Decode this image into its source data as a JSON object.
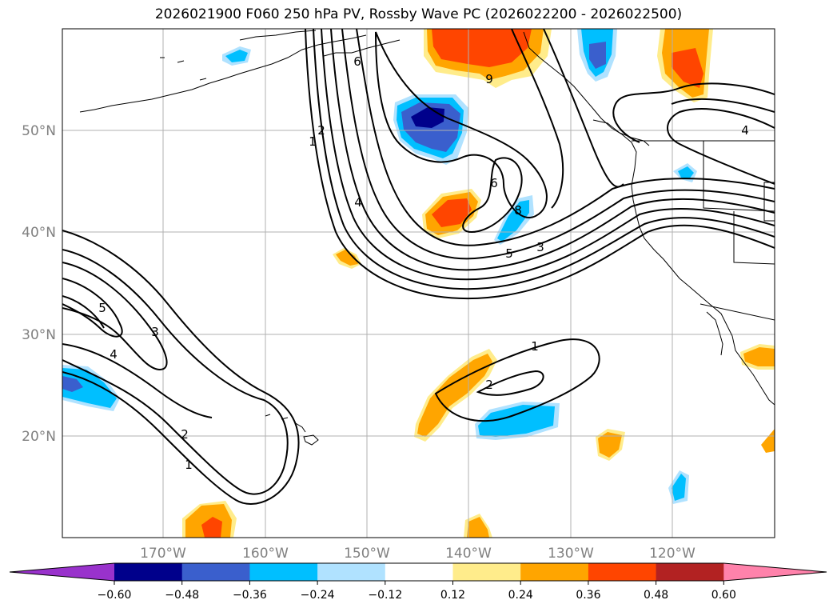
{
  "title": "2026021900 F060 250 hPa PV, Rossby Wave PC (2026022200 - 2026022500)",
  "map": {
    "lon_labels": [
      "170°W",
      "160°W",
      "150°W",
      "140°W",
      "130°W",
      "120°W"
    ],
    "lat_labels": [
      "50°N",
      "40°N",
      "30°N",
      "20°N"
    ],
    "contour_labels": [
      "6",
      "9",
      "2",
      "1",
      "4",
      "6",
      "8",
      "5",
      "3",
      "4",
      "5",
      "3",
      "4",
      "2",
      "1",
      "1",
      "2"
    ]
  },
  "colorbar": {
    "ticks": [
      "−0.60",
      "−0.48",
      "−0.36",
      "−0.24",
      "−0.12",
      "0.12",
      "0.24",
      "0.36",
      "0.48",
      "0.60"
    ],
    "colors": [
      "#9932CC",
      "#00008B",
      "#3A5FCD",
      "#00BFFF",
      "#B0E2FF",
      "#FFFFFF",
      "#FFEC8B",
      "#FFA500",
      "#FF4500",
      "#B22222",
      "#FF82AB"
    ]
  }
}
